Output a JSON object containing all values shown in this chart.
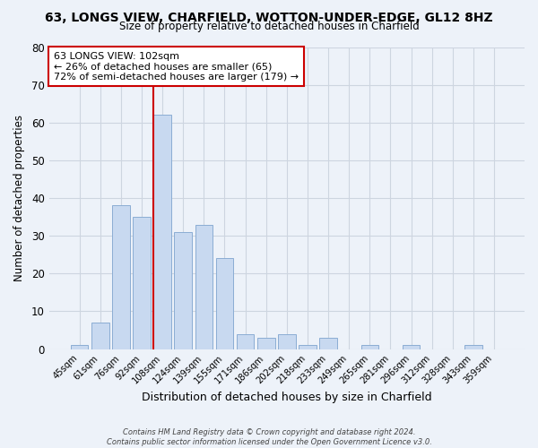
{
  "title": "63, LONGS VIEW, CHARFIELD, WOTTON-UNDER-EDGE, GL12 8HZ",
  "subtitle": "Size of property relative to detached houses in Charfield",
  "xlabel": "Distribution of detached houses by size in Charfield",
  "ylabel": "Number of detached properties",
  "bar_labels": [
    "45sqm",
    "61sqm",
    "76sqm",
    "92sqm",
    "108sqm",
    "124sqm",
    "139sqm",
    "155sqm",
    "171sqm",
    "186sqm",
    "202sqm",
    "218sqm",
    "233sqm",
    "249sqm",
    "265sqm",
    "281sqm",
    "296sqm",
    "312sqm",
    "328sqm",
    "343sqm",
    "359sqm"
  ],
  "bar_values": [
    1,
    7,
    38,
    35,
    62,
    31,
    33,
    24,
    4,
    3,
    4,
    1,
    3,
    0,
    1,
    0,
    1,
    0,
    0,
    1,
    0
  ],
  "bar_color": "#c8d9f0",
  "bar_edge_color": "#8badd4",
  "ylim": [
    0,
    80
  ],
  "yticks": [
    0,
    10,
    20,
    30,
    40,
    50,
    60,
    70,
    80
  ],
  "marker_label": "63 LONGS VIEW: 102sqm",
  "annotation_line1": "← 26% of detached houses are smaller (65)",
  "annotation_line2": "72% of semi-detached houses are larger (179) →",
  "vline_color": "#cc0000",
  "annotation_box_edge_color": "#cc0000",
  "grid_color": "#cdd5e0",
  "background_color": "#edf2f9",
  "footer_line1": "Contains HM Land Registry data © Crown copyright and database right 2024.",
  "footer_line2": "Contains public sector information licensed under the Open Government Licence v3.0."
}
